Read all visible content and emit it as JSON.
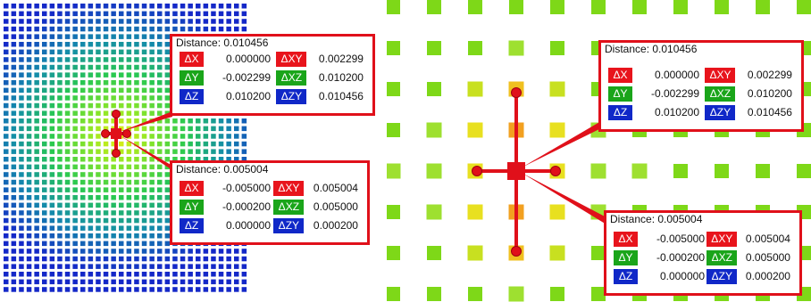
{
  "left_panel": {
    "box_a": {
      "title": "Distance: 0.010456",
      "rows": [
        {
          "l1": "ΔX",
          "v1": "0.000000",
          "l2": "ΔXY",
          "v2": "0.002299",
          "c1": "red",
          "c2": "red"
        },
        {
          "l1": "ΔY",
          "v1": "-0.002299",
          "l2": "ΔXZ",
          "v2": "0.010200",
          "c1": "green",
          "c2": "green"
        },
        {
          "l1": "ΔZ",
          "v1": "0.010200",
          "l2": "ΔZY",
          "v2": "0.010456",
          "c1": "blue",
          "c2": "blue"
        }
      ]
    },
    "box_b": {
      "title": "Distance: 0.005004",
      "rows": [
        {
          "l1": "ΔX",
          "v1": "-0.005000",
          "l2": "ΔXY",
          "v2": "0.005004",
          "c1": "red",
          "c2": "red"
        },
        {
          "l1": "ΔY",
          "v1": "-0.000200",
          "l2": "ΔXZ",
          "v2": "0.005000",
          "c1": "green",
          "c2": "green"
        },
        {
          "l1": "ΔZ",
          "v1": "0.000000",
          "l2": "ΔZY",
          "v2": "0.000200",
          "c1": "blue",
          "c2": "blue"
        }
      ]
    }
  },
  "right_panel": {
    "box_a": {
      "title": "Distance: 0.010456",
      "rows": [
        {
          "l1": "ΔX",
          "v1": "0.000000",
          "l2": "ΔXY",
          "v2": "0.002299",
          "c1": "red",
          "c2": "red"
        },
        {
          "l1": "ΔY",
          "v1": "-0.002299",
          "l2": "ΔXZ",
          "v2": "0.010200",
          "c1": "green",
          "c2": "green"
        },
        {
          "l1": "ΔZ",
          "v1": "0.010200",
          "l2": "ΔZY",
          "v2": "0.010456",
          "c1": "blue",
          "c2": "blue"
        }
      ]
    },
    "box_b": {
      "title": "Distance: 0.005004",
      "rows": [
        {
          "l1": "ΔX",
          "v1": "-0.005000",
          "l2": "ΔXY",
          "v2": "0.005004",
          "c1": "red",
          "c2": "red"
        },
        {
          "l1": "ΔY",
          "v1": "-0.000200",
          "l2": "ΔXZ",
          "v2": "0.005000",
          "c1": "green",
          "c2": "green"
        },
        {
          "l1": "ΔZ",
          "v1": "0.000000",
          "l2": "ΔZY",
          "v2": "0.000200",
          "c1": "blue",
          "c2": "blue"
        }
      ]
    }
  },
  "colors": {
    "accent_red": "#e0101a",
    "label_red": "#e8141c",
    "label_green": "#1aa51a",
    "label_blue": "#1028c8"
  }
}
